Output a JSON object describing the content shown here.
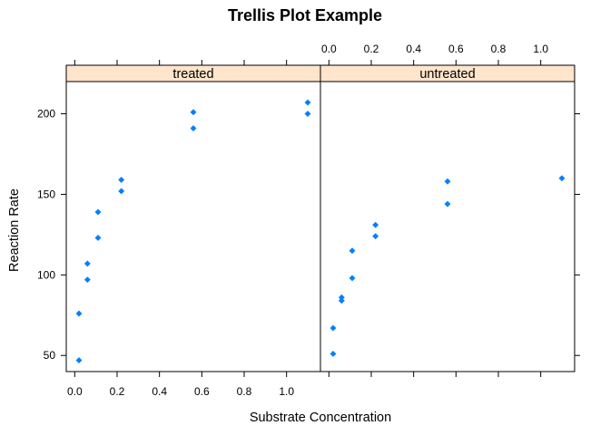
{
  "chart_data": {
    "type": "scatter",
    "title": "Trellis Plot Example",
    "xlabel": "Substrate Concentration",
    "ylabel": "Reaction Rate",
    "xlim": [
      -0.04,
      1.16
    ],
    "ylim": [
      40,
      220
    ],
    "x_ticks": [
      "0.0",
      "0.2",
      "0.4",
      "0.6",
      "0.8",
      "1.0"
    ],
    "x_tick_values": [
      0.0,
      0.2,
      0.4,
      0.6,
      0.8,
      1.0
    ],
    "y_ticks": [
      "50",
      "100",
      "150",
      "200"
    ],
    "y_tick_values": [
      50,
      100,
      150,
      200
    ],
    "grid": false,
    "point_color": "#0080ff",
    "strip_color": "#ffe5cc",
    "panels": [
      {
        "label": "treated",
        "points": [
          {
            "x": 0.02,
            "y": 76
          },
          {
            "x": 0.02,
            "y": 47
          },
          {
            "x": 0.06,
            "y": 97
          },
          {
            "x": 0.06,
            "y": 107
          },
          {
            "x": 0.11,
            "y": 123
          },
          {
            "x": 0.11,
            "y": 139
          },
          {
            "x": 0.22,
            "y": 159
          },
          {
            "x": 0.22,
            "y": 152
          },
          {
            "x": 0.56,
            "y": 191
          },
          {
            "x": 0.56,
            "y": 201
          },
          {
            "x": 1.1,
            "y": 207
          },
          {
            "x": 1.1,
            "y": 200
          }
        ]
      },
      {
        "label": "untreated",
        "points": [
          {
            "x": 0.02,
            "y": 67
          },
          {
            "x": 0.02,
            "y": 51
          },
          {
            "x": 0.06,
            "y": 84
          },
          {
            "x": 0.06,
            "y": 86
          },
          {
            "x": 0.11,
            "y": 98
          },
          {
            "x": 0.11,
            "y": 115
          },
          {
            "x": 0.22,
            "y": 131
          },
          {
            "x": 0.22,
            "y": 124
          },
          {
            "x": 0.56,
            "y": 144
          },
          {
            "x": 0.56,
            "y": 158
          },
          {
            "x": 1.1,
            "y": 160
          }
        ]
      }
    ]
  }
}
